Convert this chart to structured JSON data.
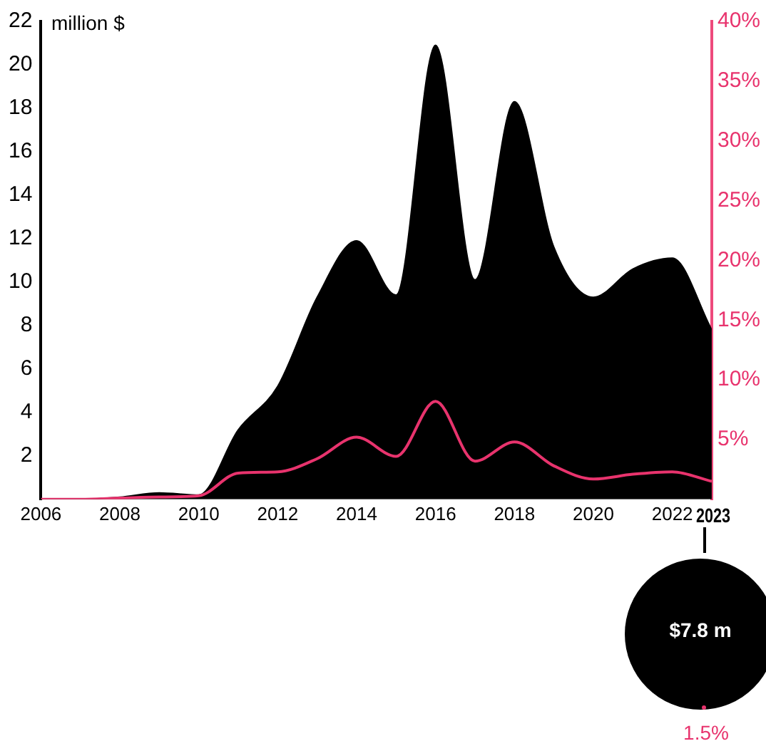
{
  "chart_data": {
    "type": "area",
    "ylabel": "million $",
    "x": [
      2006,
      2007,
      2008,
      2009,
      2010,
      2011,
      2012,
      2013,
      2014,
      2015,
      2016,
      2017,
      2018,
      2019,
      2020,
      2021,
      2022,
      2023
    ],
    "series": [
      {
        "color": "#000000",
        "values": [
          0,
          0,
          0.1,
          0.3,
          0.2,
          3.2,
          5.2,
          9.3,
          11.9,
          9.4,
          20.9,
          10.1,
          18.3,
          11.6,
          9.3,
          10.6,
          11.1,
          7.8
        ]
      },
      {
        "type": "line",
        "axis": "y2",
        "color": "#e8336d",
        "values": [
          0,
          0,
          0.1,
          0.2,
          0.3,
          2.2,
          2.3,
          3.4,
          5.2,
          3.6,
          8.2,
          3.2,
          4.8,
          2.8,
          1.7,
          2.1,
          2.3,
          1.5
        ]
      }
    ],
    "xlim": [
      2006,
      2023
    ],
    "xticks": [
      2006,
      2008,
      2010,
      2012,
      2014,
      2016,
      2018,
      2020,
      2022,
      2023
    ],
    "ylim": [
      0,
      22
    ],
    "yticks": [
      2,
      4,
      6,
      8,
      10,
      12,
      14,
      16,
      18,
      20,
      22
    ],
    "y2lim": [
      0,
      40
    ],
    "y2ticks": [
      {
        "value": 5,
        "label": "5%"
      },
      {
        "value": 10,
        "label": "10%"
      },
      {
        "value": 15,
        "label": "15%"
      },
      {
        "value": 20,
        "label": "20%"
      },
      {
        "value": 25,
        "label": "25%"
      },
      {
        "value": 30,
        "label": "30%"
      },
      {
        "value": 35,
        "label": "35%"
      },
      {
        "value": 40,
        "label": "40%"
      }
    ],
    "annotations": [
      "$7.8 m",
      "1.5%"
    ],
    "grid": false,
    "legend": false,
    "marker": "none",
    "line_style": "solid"
  }
}
